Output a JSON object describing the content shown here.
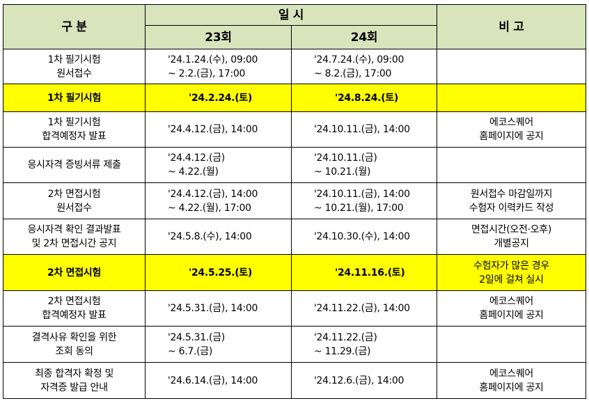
{
  "header": {
    "division": "구   분",
    "datetime": "일   시",
    "round23": "23회",
    "round24": "24회",
    "remarks": "비   고"
  },
  "rows": [
    {
      "item": "1차 필기시험\n원서접수",
      "r23": "'24.1.24.(수), 09:00\n~ 2.2.(금), 17:00",
      "r24": "'24.7.24.(수), 09:00\n~ 8.2.(금), 17:00",
      "note": ""
    },
    {
      "item": "1차 필기시험",
      "r23": "'24.2.24.(토)",
      "r24": "'24.8.24.(토)",
      "note": ""
    },
    {
      "item": "1차 필기시험\n합격예정자 발표",
      "r23": "'24.4.12.(금), 14:00",
      "r24": "'24.10.11.(금), 14:00",
      "note": "에코스퀘어\n홈페이지에 공지"
    },
    {
      "item": "응시자격 증빙서류 제출",
      "r23": "'24.4.12.(금)\n~ 4.22.(월)",
      "r24": "'24.10.11.(금)\n~ 10.21.(월)",
      "note": ""
    },
    {
      "item": "2차 면접시험\n원서접수",
      "r23": "'24.4.12.(금), 14:00\n~ 4.22.(월), 17:00",
      "r24": "'24.10.11.(금), 14:00\n~ 10.21.(월), 17:00",
      "note": "원서접수 마감일까지\n수험자 이력카드 작성"
    },
    {
      "item": "응시자격 확인 결과발표\n및 2차 면접시간 공지",
      "r23": "'24.5.8.(수), 14:00",
      "r24": "'24.10.30.(수), 14:00",
      "note": "면접시간(오전·오후)\n개별공지"
    },
    {
      "item": "2차 면접시험",
      "r23": "'24.5.25.(토)",
      "r24": "'24.11.16.(토)",
      "note": "수험자가 많은 경우\n2일에 걸쳐 실시"
    },
    {
      "item": "2차 면접시험\n합격예정자 발표",
      "r23": "'24.5.31.(금), 14:00",
      "r24": "'24.11.22.(금), 14:00",
      "note": "에코스퀘어\n홈페이지에 공지"
    },
    {
      "item": "결격사유 확인을 위한\n조회 동의",
      "r23": "'24.5.31.(금)\n~ 6.7.(금)",
      "r24": "'24.11.22.(금)\n~ 11.29.(금)",
      "note": ""
    },
    {
      "item": "최종 합격자 확정 및\n자격증 발급 안내",
      "r23": "'24.6.14.(금), 14:00",
      "r24": "'24.12.6.(금), 14:00",
      "note": "에코스퀘어\n홈페이지에 공지"
    }
  ]
}
